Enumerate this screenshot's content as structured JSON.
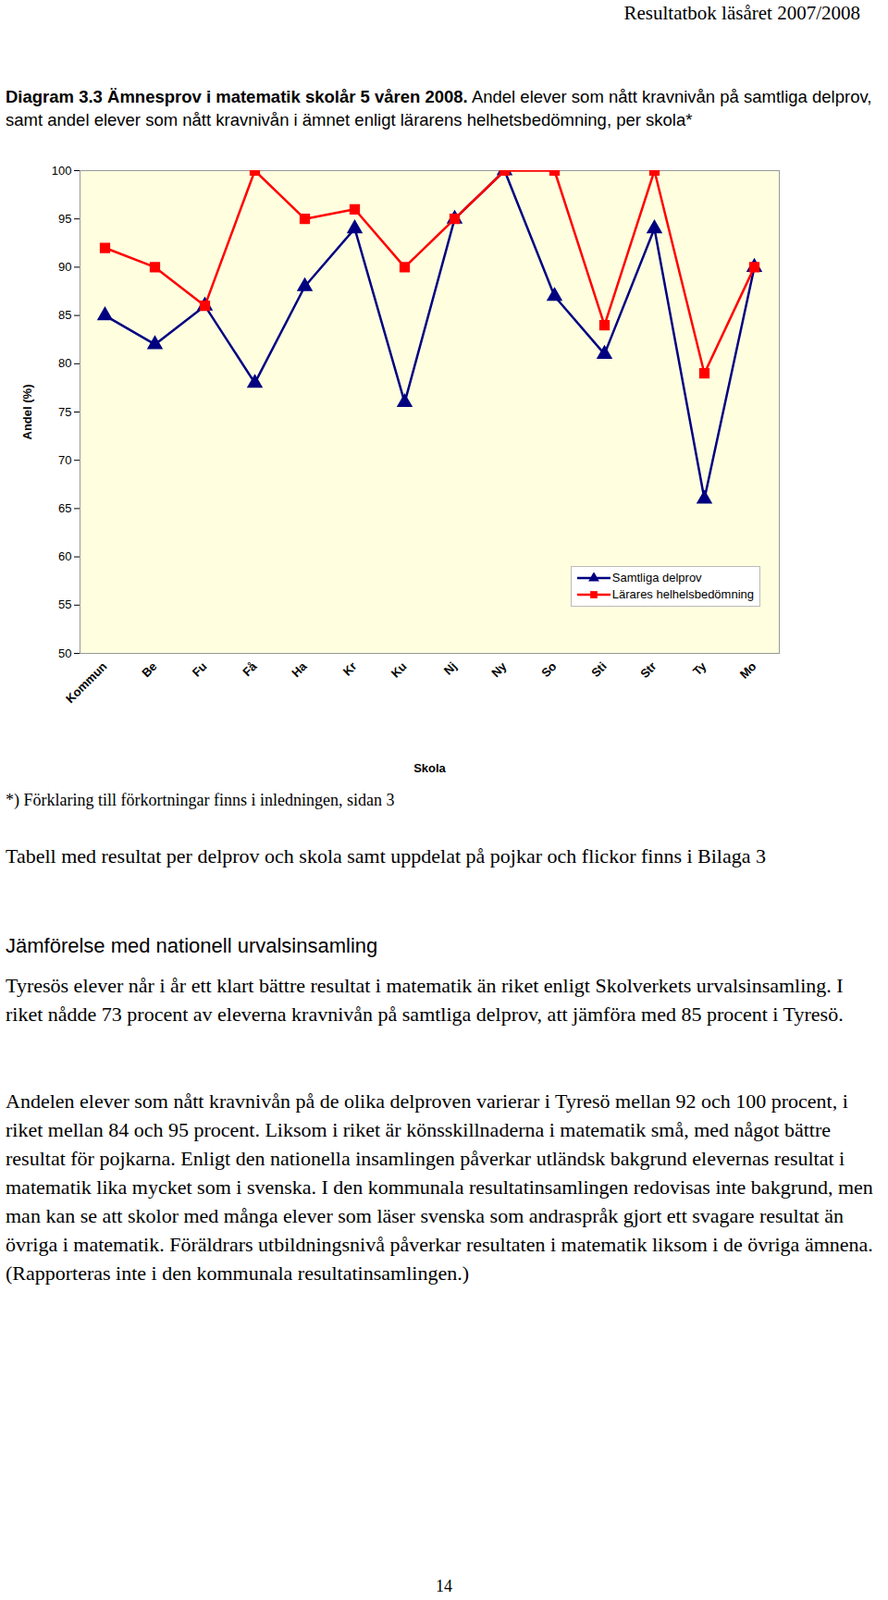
{
  "header": "Resultatbok läsåret 2007/2008",
  "chart_data": {
    "type": "line",
    "title": "Diagram 3.3 Ämnesprov i matematik skolår 5 våren 2008.",
    "subtitle": "Andel elever som nått kravnivån på samtliga delprov, samt andel elever som nått kravnivån i ämnet enligt lärarens helhetsbedömning, per skola*",
    "x_label": "Skola",
    "y_label": "Andel (%)",
    "categories": [
      "Kommun",
      "Be",
      "Fu",
      "Få",
      "Ha",
      "Kr",
      "Ku",
      "Nj",
      "Ny",
      "So",
      "Sti",
      "Str",
      "Ty",
      "Mo"
    ],
    "series": [
      {
        "name": "Samtliga delprov",
        "color": "#000080",
        "marker": "triangle",
        "values": [
          85,
          82,
          86,
          78,
          88,
          94,
          76,
          95,
          100,
          87,
          81,
          94,
          66,
          90
        ]
      },
      {
        "name": "Lärares helhelsbedömning",
        "color": "#ff0000",
        "marker": "square",
        "values": [
          92,
          90,
          86,
          100,
          95,
          96,
          90,
          95,
          100,
          100,
          84,
          100,
          79,
          90
        ]
      }
    ],
    "ylim": [
      50,
      100
    ],
    "yticks": [
      50,
      55,
      60,
      65,
      70,
      75,
      80,
      85,
      90,
      95,
      100
    ],
    "grid": false,
    "legend": "lower right"
  },
  "footnote": "*) Förklaring till förkortningar finns i inledningen, sidan 3",
  "paragraph_1": "Tabell med resultat per delprov och skola samt uppdelat på pojkar och flickor finns i Bilaga 3",
  "heading": "Jämförelse med nationell urvalsinsamling",
  "paragraph_2": "Tyresös elever når i år ett klart bättre resultat i matematik än riket enligt Skolverkets urvalsinsamling. I riket nådde 73 procent av eleverna kravnivån på samtliga delprov, att jämföra med 85 procent i Tyresö.",
  "paragraph_3": "Andelen elever som nått kravnivån på de olika delproven varierar i Tyresö mellan 92 och 100 procent, i riket mellan 84 och 95 procent. Liksom i riket är könsskillnaderna i matematik små, med något bättre resultat för pojkarna. Enligt den nationella insamlingen påverkar utländsk bakgrund elevernas resultat i matematik lika mycket som i svenska. I den kommunala resultatinsamlingen redovisas inte bakgrund, men man kan se att skolor med många elever som läser svenska som andraspråk gjort ett svagare resultat än övriga i matematik. Föräldrars utbildningsnivå påverkar resultaten i matematik liksom i de övriga ämnena. (Rapporteras inte i den kommunala resultatinsamlingen.)",
  "page_number": "14"
}
